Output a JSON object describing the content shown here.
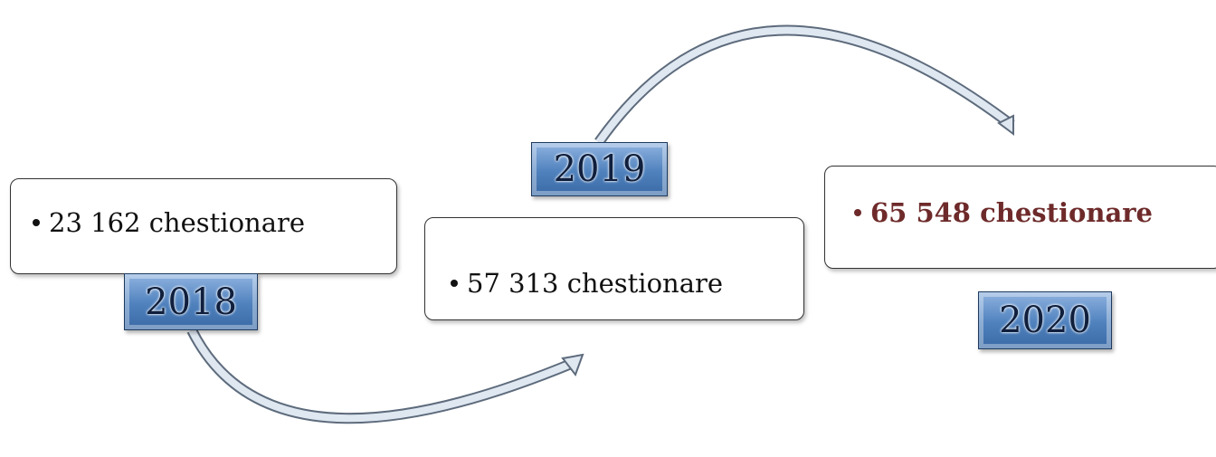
{
  "nodes": [
    {
      "label": "2018",
      "text": "23 162 chestionare"
    },
    {
      "label": "2019",
      "text": "57 313 chestionare"
    },
    {
      "label": "2020",
      "text": "65 548 chestionare"
    }
  ]
}
